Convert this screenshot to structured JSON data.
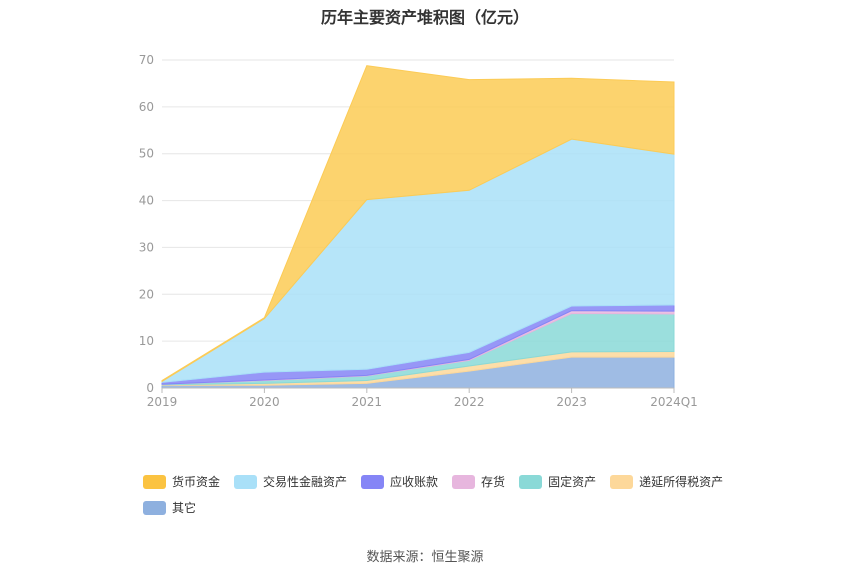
{
  "chart_data": {
    "type": "area",
    "title": "历年主要资产堆积图（亿元）",
    "categories": [
      "2019",
      "2020",
      "2021",
      "2022",
      "2023",
      "2024Q1"
    ],
    "ylim": [
      0,
      70
    ],
    "yticks": [
      0,
      10,
      20,
      30,
      40,
      50,
      60,
      70
    ],
    "grid": true,
    "legend_position": "bottom",
    "stacked": true,
    "series": [
      {
        "name": "其它",
        "color": "#8eb0df",
        "values": [
          0.6,
          0.6,
          1.0,
          3.6,
          6.6,
          6.6
        ]
      },
      {
        "name": "递延所得税资产",
        "color": "#fdd89a",
        "values": [
          0.1,
          0.4,
          0.6,
          1.1,
          1.1,
          1.2
        ]
      },
      {
        "name": "固定资产",
        "color": "#8ad9d7",
        "values": [
          0.1,
          0.6,
          1.0,
          1.2,
          8.2,
          8.0
        ]
      },
      {
        "name": "存货",
        "color": "#e7b6de",
        "values": [
          0.0,
          0.1,
          0.1,
          0.2,
          0.6,
          0.6
        ]
      },
      {
        "name": "应收账款",
        "color": "#8585f6",
        "values": [
          0.4,
          1.7,
          1.3,
          1.5,
          1.0,
          1.3
        ]
      },
      {
        "name": "交易性金融资产",
        "color": "#a9e0f8",
        "values": [
          0.2,
          11.4,
          36.2,
          34.6,
          35.6,
          32.2
        ]
      },
      {
        "name": "货币资金",
        "color": "#fccb55",
        "values": [
          0.2,
          0.2,
          28.6,
          23.6,
          13.0,
          15.4
        ]
      }
    ],
    "legend_order": [
      "货币资金",
      "交易性金融资产",
      "应收账款",
      "存货",
      "固定资产",
      "递延所得税资产",
      "其它"
    ]
  },
  "source": "数据来源：恒生聚源"
}
